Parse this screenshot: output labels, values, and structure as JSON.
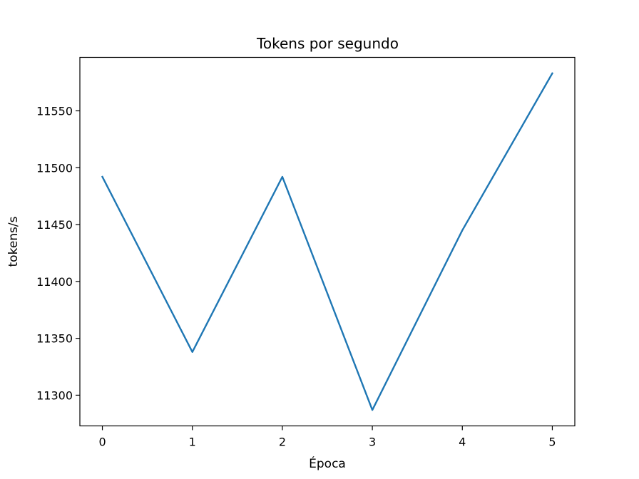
{
  "chart_data": {
    "type": "line",
    "title": "Tokens por segundo",
    "xlabel": "Época",
    "ylabel": "tokens/s",
    "x": [
      0,
      1,
      2,
      3,
      4,
      5
    ],
    "series": [
      {
        "values": [
          11492,
          11338,
          11492,
          11287,
          11445,
          11583
        ],
        "color": "#1f77b4"
      }
    ],
    "xlim": [
      -0.25,
      5.25
    ],
    "ylim": [
      11273,
      11597
    ],
    "xticks": [
      0,
      1,
      2,
      3,
      4,
      5
    ],
    "yticks": [
      11300,
      11350,
      11400,
      11450,
      11500,
      11550
    ],
    "grid": false,
    "legend": "none"
  }
}
